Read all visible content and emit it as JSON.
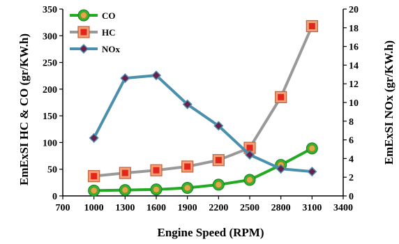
{
  "chart_data": {
    "type": "line",
    "xlabel": "Engine Speed (RPM)",
    "ylabel": "EmExSI HC & CO (gr/KW.h)",
    "y2label": "EmExSI NOx (gr/KW.h)",
    "xlim": [
      700,
      3400
    ],
    "ylim": [
      0,
      350
    ],
    "y2lim": [
      0,
      20
    ],
    "x_ticks": [
      "700",
      "1000",
      "1300",
      "1600",
      "1900",
      "2200",
      "2500",
      "2800",
      "3100",
      "3400"
    ],
    "y_ticks": [
      "0",
      "50",
      "100",
      "150",
      "200",
      "250",
      "300",
      "350"
    ],
    "y2_ticks": [
      "0",
      "2",
      "4",
      "6",
      "8",
      "10",
      "12",
      "14",
      "16",
      "18",
      "20"
    ],
    "grid": false,
    "legend_position": "top-left",
    "x": [
      1000,
      1300,
      1600,
      1900,
      2200,
      2500,
      2800,
      3100
    ],
    "series": [
      {
        "name": "CO",
        "axis": "left",
        "color": "#22aa22",
        "marker": "circle",
        "values": [
          10,
          11,
          12,
          15,
          21,
          30,
          58,
          89
        ]
      },
      {
        "name": "HC",
        "axis": "left",
        "color": "#999999",
        "marker": "square",
        "values": [
          37,
          43,
          48,
          55,
          67,
          90,
          185,
          318
        ]
      },
      {
        "name": "NOx",
        "axis": "right",
        "color": "#4a8fae",
        "marker": "diamond",
        "values": [
          6.2,
          12.6,
          12.9,
          9.8,
          7.5,
          4.4,
          2.9,
          2.6
        ]
      }
    ]
  }
}
